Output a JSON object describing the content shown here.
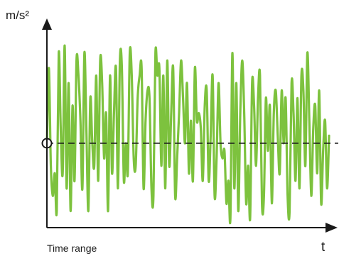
{
  "chart_data": {
    "type": "line",
    "title": "",
    "ylabel": "m/s²",
    "xlabel": "t",
    "annotation": "Time range",
    "reference_line": {
      "label": "",
      "value": 0,
      "style": "dashed"
    },
    "ylim": [
      -1.3,
      1.6
    ],
    "grid": false,
    "legend": "none",
    "series": [
      {
        "name": "",
        "color": "#7dc23e",
        "x": [
          0,
          1,
          2,
          3,
          4,
          5,
          6,
          7,
          8,
          9,
          10,
          11,
          12,
          13,
          14,
          15,
          16,
          17,
          18,
          19,
          20,
          21,
          22,
          23,
          24,
          25,
          26,
          27,
          28,
          29,
          30,
          31,
          32,
          33,
          34,
          35,
          36,
          37,
          38,
          39,
          40,
          41,
          42,
          43,
          44,
          45,
          46,
          47,
          48,
          49,
          50,
          51,
          52,
          53,
          54,
          55,
          56,
          57,
          58,
          59,
          60,
          61,
          62,
          63,
          64,
          65,
          66,
          67,
          68,
          69,
          70,
          71,
          72,
          73,
          74,
          75,
          76,
          77,
          78,
          79,
          80,
          81,
          82,
          83,
          84,
          85,
          86,
          87,
          88,
          89,
          90,
          91,
          92,
          93,
          94,
          95,
          96,
          97,
          98,
          99,
          100,
          101,
          102,
          103,
          104,
          105,
          106,
          107,
          108,
          109,
          110,
          111,
          112,
          113,
          114,
          115,
          116,
          117,
          118,
          119,
          120,
          121,
          122,
          123,
          124,
          125,
          126,
          127,
          128,
          129,
          130,
          131,
          132,
          133,
          134,
          135,
          136,
          137,
          138,
          139,
          140,
          141,
          142,
          143
        ],
        "values": [
          0,
          1.0,
          -0.3,
          -0.7,
          -0.4,
          -0.9,
          1.2,
          0.2,
          -0.4,
          1.3,
          -0.6,
          0.8,
          -0.9,
          0.5,
          -0.5,
          1.1,
          0.9,
          0.3,
          -0.6,
          1.2,
          0.2,
          -0.9,
          0.6,
          0.0,
          -0.3,
          0.9,
          -0.5,
          1.1,
          0.8,
          -0.2,
          0.4,
          -0.9,
          0.9,
          -0.4,
          0.4,
          1.0,
          -0.6,
          1.1,
          1.0,
          -0.5,
          0.0,
          -0.4,
          1.2,
          0.9,
          -0.2,
          -0.3,
          0.6,
          0.9,
          1.0,
          -0.6,
          0.3,
          0.7,
          0.6,
          -0.6,
          -0.7,
          1.2,
          0.9,
          1.0,
          -0.3,
          0.9,
          -0.6,
          1.1,
          -0.3,
          0.4,
          1.0,
          -0.7,
          -0.2,
          0.4,
          1.1,
          0.6,
          0.0,
          0.8,
          -0.4,
          0.3,
          -0.5,
          1.0,
          0.3,
          0.4,
          0.2,
          -0.5,
          0.5,
          0.7,
          -0.5,
          0.1,
          0.9,
          -0.7,
          -0.2,
          0.8,
          0.0,
          -0.2,
          -0.1,
          -0.8,
          -0.5,
          -1.0,
          1.2,
          -0.6,
          0.8,
          -0.9,
          0.4,
          1.1,
          0.4,
          -0.8,
          -0.3,
          -1.0,
          0.8,
          0.5,
          -0.3,
          0.6,
          0.9,
          -0.8,
          -0.7,
          0.6,
          -0.1,
          0.5,
          -0.8,
          0.4,
          0.7,
          0.1,
          -0.4,
          0.7,
          0.0,
          0.6,
          -0.7,
          -0.9,
          0.8,
          0.4,
          -0.5,
          0.6,
          -0.6,
          0.9,
          0.7,
          -0.3,
          1.2,
          0.3,
          -0.7,
          0.2,
          0.5,
          -0.4,
          0.7,
          -0.8,
          -0.1,
          0.3,
          -0.6,
          0.1
        ]
      }
    ]
  },
  "colors": {
    "axis": "#1a1a1a",
    "series": "#7dc23e",
    "reference": "#1a1a1a",
    "marker_fill": "#ffffff"
  }
}
